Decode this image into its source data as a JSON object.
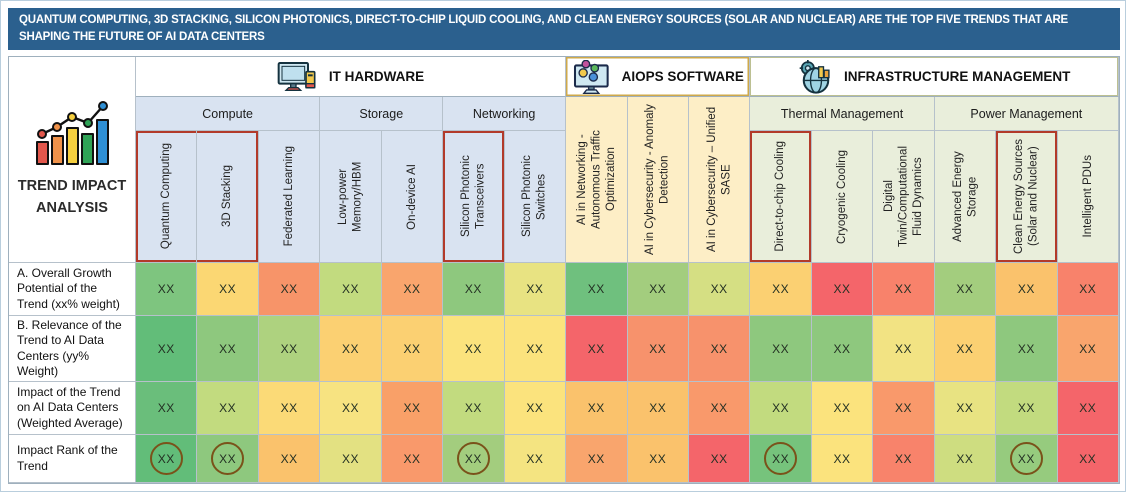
{
  "banner": {
    "text": "QUANTUM COMPUTING, 3D STACKING, SILICON PHOTONICS, DIRECT-TO-CHIP LIQUID COOLING, AND CLEAN ENERGY SOURCES (SOLAR AND NUCLEAR) ARE THE TOP FIVE TRENDS THAT ARE SHAPING THE FUTURE OF AI DATA CENTERS",
    "bg_color": "#2b608e"
  },
  "sidebar": {
    "title": "TREND IMPACT ANALYSIS",
    "icon": "bar-chart-trend-icon"
  },
  "groups": [
    {
      "label": "IT HARDWARE",
      "icon": "desktop-computer-icon"
    },
    {
      "label": "AIOPS SOFTWARE",
      "icon": "monitor-gears-icon"
    },
    {
      "label": "INFRASTRUCTURE MANAGEMENT",
      "icon": "globe-gear-icon"
    }
  ],
  "subgroups": [
    {
      "label": "Compute",
      "group": "IT HARDWARE"
    },
    {
      "label": "Storage",
      "group": "IT HARDWARE"
    },
    {
      "label": "Networking",
      "group": "IT HARDWARE"
    },
    {
      "label": "Thermal Management",
      "group": "INFRASTRUCTURE MANAGEMENT"
    },
    {
      "label": "Power Management",
      "group": "INFRASTRUCTURE MANAGEMENT"
    }
  ],
  "highlight_color": "#b23a2a",
  "circle_color": "#7a521a",
  "chart_data": {
    "type": "heatmap",
    "title": "TREND IMPACT ANALYSIS",
    "legend_note": "cell color encodes score from high (green) to low (red); values masked as XX",
    "columns": [
      {
        "label": "Quantum Computing",
        "section": "compute",
        "highlight": "left"
      },
      {
        "label": "3D Stacking",
        "section": "compute",
        "highlight": "right"
      },
      {
        "label": "Federated Learning",
        "section": "compute",
        "highlight": "none"
      },
      {
        "label": "Low-power Memory/HBM",
        "section": "storage",
        "highlight": "none"
      },
      {
        "label": "On-device AI",
        "section": "storage",
        "highlight": "none"
      },
      {
        "label": "Silicon Photonic Transceivers",
        "section": "networking",
        "highlight": "full"
      },
      {
        "label": "Silicon Photonic Switches",
        "section": "networking",
        "highlight": "none"
      },
      {
        "label": "AI in Networking - Autonomous Traffic Optimization",
        "section": "aiops",
        "highlight": "none"
      },
      {
        "label": "AI in Cybersecurity - Anomaly Detection",
        "section": "aiops",
        "highlight": "none"
      },
      {
        "label": "AI in Cybersecurity – Unified SASE",
        "section": "aiops",
        "highlight": "none"
      },
      {
        "label": "Direct-to-chip Cooling",
        "section": "thermal",
        "highlight": "full"
      },
      {
        "label": "Cryogenic Cooling",
        "section": "thermal",
        "highlight": "none"
      },
      {
        "label": "Digital Twin/Computational Fluid Dynamics",
        "section": "thermal",
        "highlight": "none"
      },
      {
        "label": "Advanced Energy Storage",
        "section": "power",
        "highlight": "none"
      },
      {
        "label": "Clean Energy Sources (Solar and Nuclear)",
        "section": "power",
        "highlight": "full"
      },
      {
        "label": "Intelligent PDUs",
        "section": "power",
        "highlight": "none"
      }
    ],
    "rows": [
      {
        "label": "A. Overall Growth Potential of the Trend (xx% weight)",
        "values": [
          "XX",
          "XX",
          "XX",
          "XX",
          "XX",
          "XX",
          "XX",
          "XX",
          "XX",
          "XX",
          "XX",
          "XX",
          "XX",
          "XX",
          "XX",
          "XX"
        ],
        "colors": [
          "#7ec57f",
          "#fbd773",
          "#f79469",
          "#c2db7f",
          "#f9a56d",
          "#8ec87e",
          "#e8e382",
          "#6fc07e",
          "#a3cd7e",
          "#d5df83",
          "#fbd072",
          "#f4656a",
          "#f8826b",
          "#a3cd7e",
          "#fac26c",
          "#f8826b"
        ],
        "circled": []
      },
      {
        "label": "B. Relevance of the Trend to AI Data Centers (yy% Weight)",
        "values": [
          "XX",
          "XX",
          "XX",
          "XX",
          "XX",
          "XX",
          "XX",
          "XX",
          "XX",
          "XX",
          "XX",
          "XX",
          "XX",
          "XX",
          "XX",
          "XX"
        ],
        "colors": [
          "#62bd79",
          "#8ec87e",
          "#aed27f",
          "#fbd072",
          "#fbd072",
          "#fbe37d",
          "#fbe37d",
          "#f4656a",
          "#f7926c",
          "#f7926c",
          "#8ec87e",
          "#8ec87e",
          "#f2e383",
          "#fbd072",
          "#8ec87e",
          "#f9a56d"
        ],
        "circled": []
      },
      {
        "label": "Impact of the Trend on AI Data Centers (Weighted Average)",
        "values": [
          "XX",
          "XX",
          "XX",
          "XX",
          "XX",
          "XX",
          "XX",
          "XX",
          "XX",
          "XX",
          "XX",
          "XX",
          "XX",
          "XX",
          "XX",
          "XX"
        ],
        "colors": [
          "#6abe7b",
          "#c2db7f",
          "#fbda77",
          "#f7e381",
          "#f9a068",
          "#c2db7f",
          "#fbe37d",
          "#fac26c",
          "#fac26c",
          "#f9996b",
          "#c2db7f",
          "#fbe37d",
          "#f9996b",
          "#e8e382",
          "#c2db7f",
          "#f4656a"
        ],
        "circled": []
      },
      {
        "label": "Impact Rank of the Trend",
        "values": [
          "XX",
          "XX",
          "XX",
          "XX",
          "XX",
          "XX",
          "XX",
          "XX",
          "XX",
          "XX",
          "XX",
          "XX",
          "XX",
          "XX",
          "XX",
          "XX"
        ],
        "colors": [
          "#62bd79",
          "#8ec87e",
          "#fac26c",
          "#e3e182",
          "#f9996b",
          "#a3cd7e",
          "#f4e481",
          "#f9a56d",
          "#fac26c",
          "#f4656a",
          "#76c37c",
          "#fbe37d",
          "#f8836b",
          "#cedd80",
          "#96cb7e",
          "#f4656a"
        ],
        "circled": [
          0,
          1,
          5,
          10,
          14
        ]
      }
    ],
    "highlighted_column_groups": [
      [
        "Quantum Computing",
        "3D Stacking"
      ],
      [
        "Silicon Photonic Transceivers"
      ],
      [
        "Direct-to-chip Cooling"
      ],
      [
        "Clean Energy Sources (Solar and Nuclear)"
      ]
    ],
    "circled_rank_columns": [
      "Quantum Computing",
      "3D Stacking",
      "Silicon Photonic Transceivers",
      "Direct-to-chip Cooling",
      "Clean Energy Sources (Solar and Nuclear)"
    ]
  }
}
